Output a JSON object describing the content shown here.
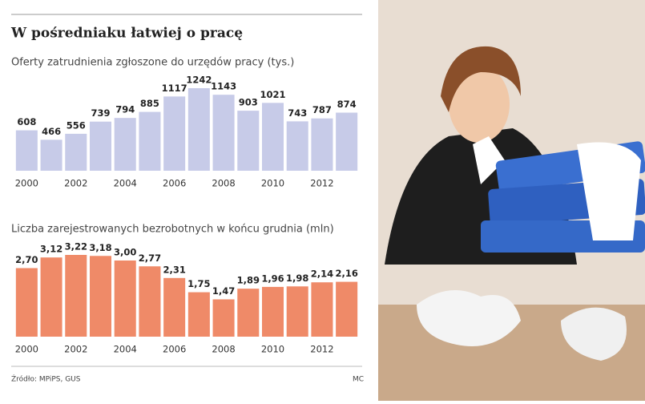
{
  "title": "W pośredniaku łatwiej o pracę",
  "chart_data": [
    {
      "type": "bar",
      "title": "Oferty zatrudnienia zgłoszone do urzędów pracy (tys.)",
      "categories": [
        "2000",
        null,
        "2002",
        null,
        "2004",
        null,
        "2006",
        null,
        "2008",
        null,
        "2010",
        null,
        "2012",
        null
      ],
      "values": [
        608,
        466,
        556,
        739,
        794,
        885,
        1117,
        1242,
        1143,
        903,
        1021,
        743,
        787,
        874
      ],
      "color": "#c7cbe8"
    },
    {
      "type": "bar",
      "title": "Liczba zarejestrowanych bezrobotnych w końcu grudnia (mln)",
      "categories": [
        "2000",
        null,
        "2002",
        null,
        "2004",
        null,
        "2006",
        null,
        "2008",
        null,
        "2010",
        null,
        "2012",
        null
      ],
      "values": [
        2.7,
        3.12,
        3.22,
        3.18,
        3.0,
        2.77,
        2.31,
        1.75,
        1.47,
        1.89,
        1.96,
        1.98,
        2.14,
        2.16
      ],
      "value_labels": [
        "2,70",
        "3,12",
        "3,22",
        "3,18",
        "3,00",
        "2,77",
        "2,31",
        "1,75",
        "1,47",
        "1,89",
        "1,96",
        "1,98",
        "2,14",
        "2,16"
      ],
      "color": "#ef8a68"
    }
  ],
  "source": "Źródło: MPiPS, GUS",
  "credit": "MC"
}
